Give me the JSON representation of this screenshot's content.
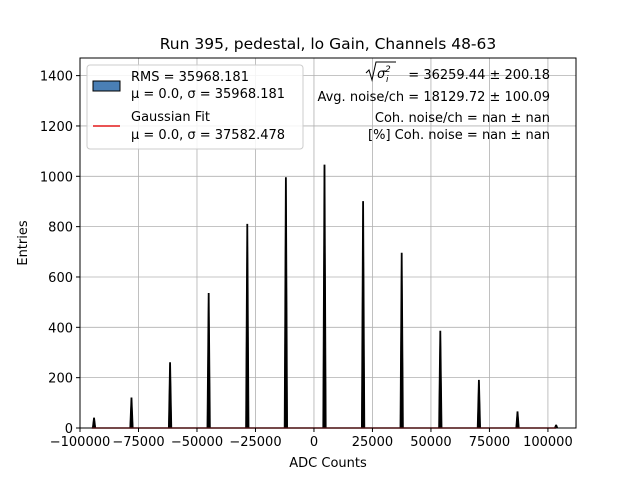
{
  "chart_data": {
    "type": "bar",
    "title": "Run 395, pedestal, lo Gain, Channels 48-63",
    "xlabel": "ADC Counts",
    "ylabel": "Entries",
    "xlim": [
      -100000,
      112000
    ],
    "ylim": [
      0,
      1470
    ],
    "x_ticks": [
      -100000,
      -75000,
      -50000,
      -25000,
      0,
      25000,
      50000,
      75000,
      100000
    ],
    "x_tick_labels": [
      "−100000",
      "−75000",
      "−50000",
      "−25000",
      "0",
      "25000",
      "50000",
      "75000",
      "100000"
    ],
    "y_ticks": [
      0,
      200,
      400,
      600,
      800,
      1000,
      1200,
      1400
    ],
    "y_tick_labels": [
      "0",
      "200",
      "400",
      "600",
      "800",
      "1000",
      "1200",
      "1400"
    ],
    "grid": true,
    "bar_fill_color": "#000000",
    "peaks": {
      "x": [
        -94000,
        -78000,
        -61500,
        -45000,
        -28500,
        -12000,
        4500,
        21000,
        37500,
        54000,
        70500,
        87000,
        103500
      ],
      "values": [
        40,
        120,
        260,
        535,
        810,
        995,
        1045,
        900,
        695,
        385,
        190,
        65,
        12
      ]
    },
    "fit_curve": {
      "color": "#d62728",
      "x": [
        -95000,
        103500
      ],
      "values": [
        0,
        0
      ]
    },
    "legend": {
      "location": "top-left",
      "entries": [
        {
          "kind": "patch",
          "color": "#4a7fb5",
          "line1": "RMS = 35968.181",
          "line2": "μ = 0.0, σ = 35968.181"
        },
        {
          "kind": "line",
          "color": "#e31a1c",
          "line1": "Gaussian Fit",
          "line2": "μ = 0.0, σ = 37582.478"
        }
      ]
    },
    "stats": {
      "sigma_line": "= 36259.44 ± 200.18",
      "avg_noise": "Avg. noise/ch = 18129.72 ± 100.09",
      "coh_noise": "Coh. noise/ch = nan ± nan",
      "coh_noise_pct": "[%] Coh. noise = nan ± nan"
    }
  }
}
